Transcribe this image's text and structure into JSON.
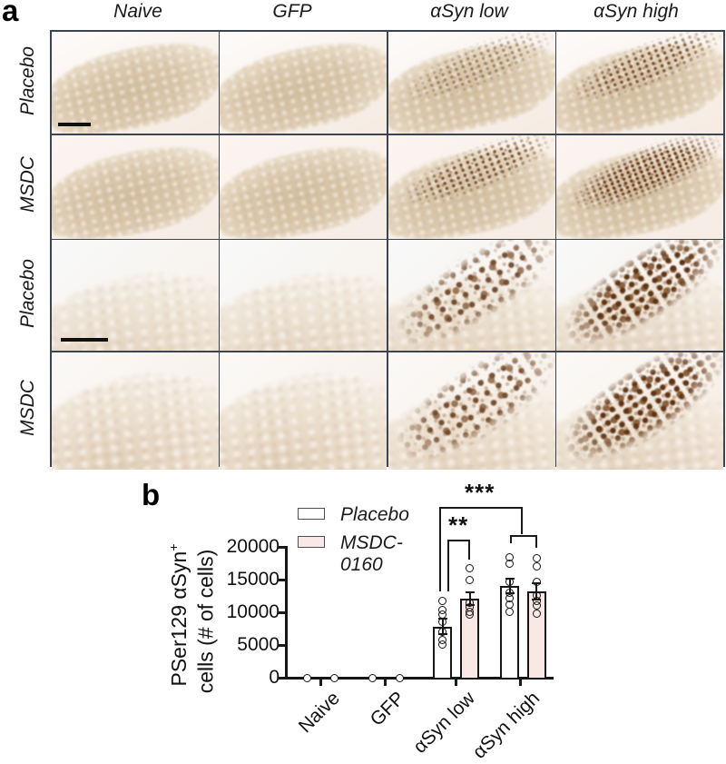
{
  "panel_a": {
    "label": "a",
    "column_headers": [
      "Naive",
      "GFP",
      "αSyn low",
      "αSyn high"
    ],
    "rows": [
      {
        "label": "Placebo",
        "magnification": "low",
        "stain_levels": [
          0,
          0,
          1,
          2
        ],
        "scale_bar": true
      },
      {
        "label": "MSDC",
        "magnification": "low",
        "stain_levels": [
          0,
          0,
          2,
          3
        ],
        "scale_bar": false
      },
      {
        "label": "Placebo",
        "magnification": "high",
        "stain_levels": [
          0,
          0,
          2,
          3
        ],
        "scale_bar": true
      },
      {
        "label": "MSDC",
        "magnification": "high",
        "stain_levels": [
          0,
          0,
          2,
          3
        ],
        "scale_bar": false
      }
    ]
  },
  "panel_b": {
    "label": "b"
  },
  "chart_data": {
    "type": "bar",
    "title": "",
    "categories": [
      "Naive",
      "GFP",
      "αSyn low",
      "αSyn high"
    ],
    "series": [
      {
        "name": "Placebo",
        "display_lines": [
          "Placebo"
        ],
        "color": "#ffffff",
        "values": [
          0,
          0,
          7800,
          14000
        ],
        "sem": [
          0,
          0,
          1200,
          1150
        ],
        "points": [
          [
            0
          ],
          [
            0
          ],
          [
            11800,
            10300,
            9700,
            8600,
            7000,
            5700,
            5100
          ],
          [
            18400,
            17400,
            14700,
            13000,
            12100,
            11200,
            10100
          ]
        ]
      },
      {
        "name": "MSDC-0160",
        "display_lines": [
          "MSDC-",
          "0160"
        ],
        "color": "#f9e8e5",
        "values": [
          0,
          0,
          12100,
          13200
        ],
        "sem": [
          0,
          0,
          950,
          1300
        ],
        "points": [
          [
            0
          ],
          [
            0
          ],
          [
            16800,
            14900,
            11400,
            10700,
            10100,
            9600
          ],
          [
            18200,
            17000,
            14700,
            12600,
            11700,
            11000,
            9800
          ]
        ]
      }
    ],
    "ylabel_line1": "PSer129 αSyn",
    "ylabel_sup": "+",
    "ylabel_line2": "cells (# of cells)",
    "xlabel": "",
    "yticks": [
      0,
      5000,
      10000,
      15000,
      20000
    ],
    "ylim": [
      0,
      20000
    ],
    "grid": false,
    "legend_position": "upper-left-inside",
    "significance": [
      {
        "label": "**",
        "between": [
          "αSyn low Placebo",
          "αSyn low MSDC-0160"
        ]
      },
      {
        "label": "***",
        "between": [
          "αSyn low Placebo",
          "αSyn high (both groups)"
        ]
      }
    ]
  }
}
